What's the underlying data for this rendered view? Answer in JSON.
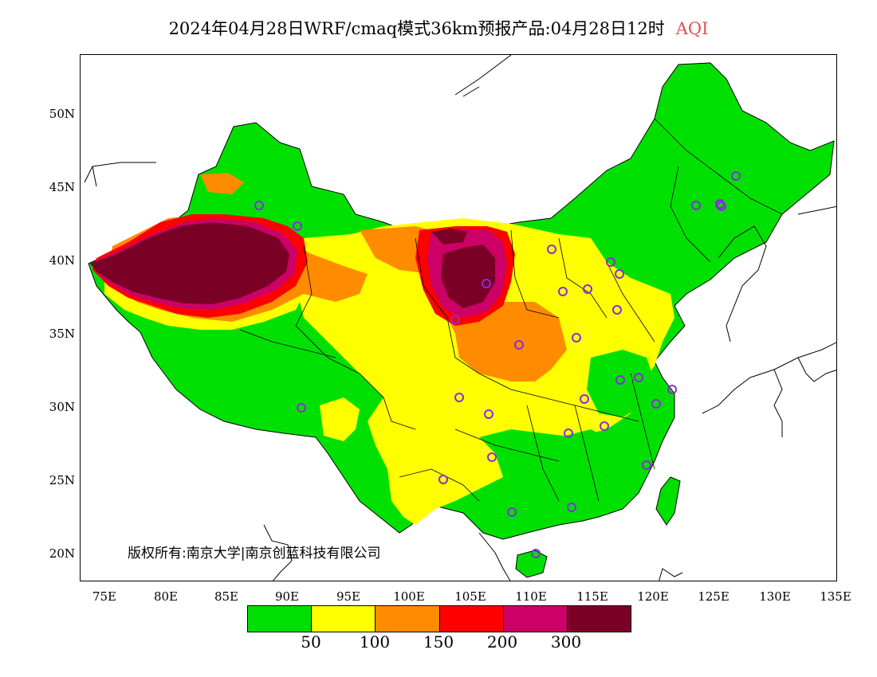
{
  "title": {
    "main": "2024年04月28日WRF/cmaq模式36km预报产品:04月28日12时",
    "variable": "AQI"
  },
  "axes": {
    "lat_labels": [
      "50N",
      "45N",
      "40N",
      "35N",
      "30N",
      "25N",
      "20N"
    ],
    "lon_labels": [
      "75E",
      "80E",
      "85E",
      "90E",
      "95E",
      "100E",
      "105E",
      "110E",
      "115E",
      "120E",
      "125E",
      "130E",
      "135E"
    ]
  },
  "copyright": "版权所有:南京大学|南京创蓝科技有限公司",
  "legend": {
    "colors": [
      "#00e000",
      "#ffff00",
      "#ff8c00",
      "#ff0000",
      "#cc0066",
      "#7a0026"
    ],
    "labels": [
      "50",
      "100",
      "150",
      "200",
      "300"
    ]
  },
  "colors": {
    "good": "#00e000",
    "moderate": "#ffff00",
    "sensitive": "#ff8c00",
    "unhealthy": "#ff0000",
    "very_unhealthy": "#cc0066",
    "hazardous": "#7a0026",
    "city_marker": "#8a2be2"
  }
}
